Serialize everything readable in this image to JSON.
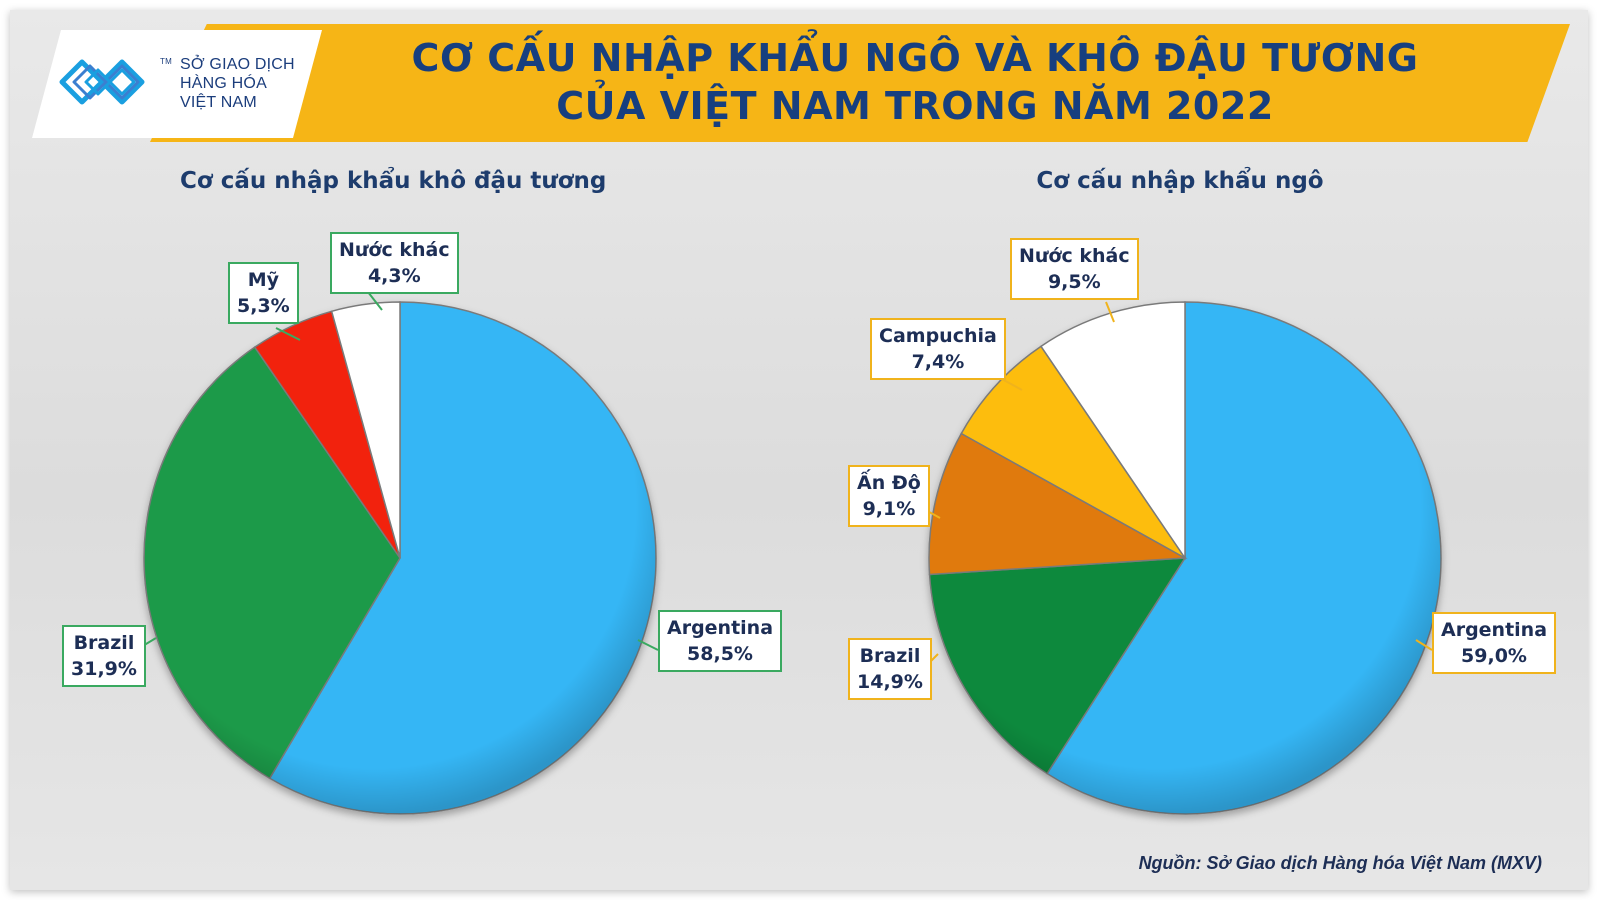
{
  "logo": {
    "line1": "SỞ GIAO DỊCH",
    "line2": "HÀNG HÓA",
    "line3": "VIỆT NAM",
    "tm": "TM"
  },
  "title": {
    "line1": "CƠ CẤU NHẬP KHẨU NGÔ VÀ KHÔ ĐẬU TƯƠNG",
    "line2": "CỦA VIỆT NAM TRONG NĂM 2022"
  },
  "colors": {
    "banner": "#f6b516",
    "title": "#173f7f",
    "callout_green": "#3aa960",
    "callout_gold": "#f0b31c"
  },
  "chart_data": [
    {
      "type": "pie",
      "title": "Cơ cấu nhập khẩu khô đậu tương",
      "slices": [
        {
          "label": "Argentina",
          "value": 58.5,
          "text": "58,5%",
          "color": "#35b6f5"
        },
        {
          "label": "Brazil",
          "value": 31.9,
          "text": "31,9%",
          "color": "#1f9a4a"
        },
        {
          "label": "Mỹ",
          "value": 5.3,
          "text": "5,3%",
          "color": "#f2210b"
        },
        {
          "label": "Nước khác",
          "value": 4.3,
          "text": "4,3%",
          "color": "#ffffff"
        }
      ]
    },
    {
      "type": "pie",
      "title": "Cơ cấu nhập khẩu ngô",
      "slices": [
        {
          "label": "Argentina",
          "value": 59.0,
          "text": "59,0%",
          "color": "#35b6f5"
        },
        {
          "label": "Brazil",
          "value": 14.9,
          "text": "14,9%",
          "color": "#11893d"
        },
        {
          "label": "Ấn Độ",
          "value": 9.1,
          "text": "9,1%",
          "color": "#e07a0a"
        },
        {
          "label": "Campuchia",
          "value": 7.4,
          "text": "7,4%",
          "color": "#fdbd10"
        },
        {
          "label": "Nước khác",
          "value": 9.5,
          "text": "9,5%",
          "color": "#ffffff"
        }
      ]
    }
  ],
  "source": "Nguồn: Sở Giao dịch Hàng hóa Việt Nam (MXV)"
}
